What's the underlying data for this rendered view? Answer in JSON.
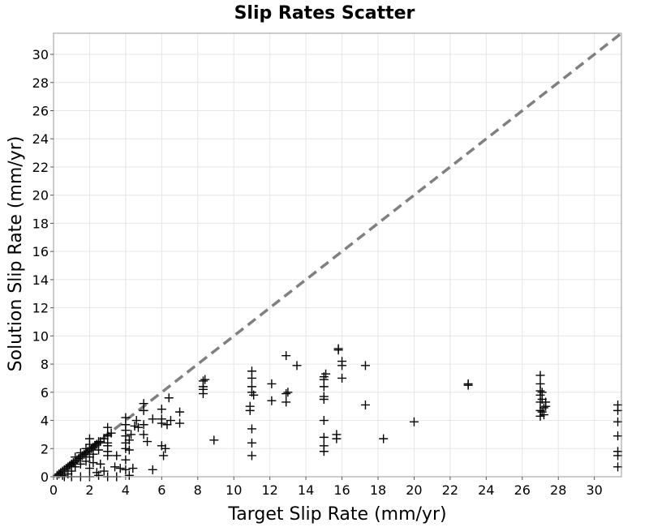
{
  "chart_data": {
    "type": "scatter",
    "title": "Slip Rates Scatter",
    "xlabel": "Target Slip Rate (mm/yr)",
    "ylabel": "Solution Slip Rate (mm/yr)",
    "xlim": [
      0,
      31.5
    ],
    "ylim": [
      0,
      31.5
    ],
    "xticks": [
      "0",
      "2",
      "4",
      "6",
      "8",
      "10",
      "12",
      "14",
      "16",
      "18",
      "20",
      "22",
      "24",
      "26",
      "28",
      "30"
    ],
    "yticks": [
      "0",
      "2",
      "4",
      "6",
      "8",
      "10",
      "12",
      "14",
      "16",
      "18",
      "20",
      "22",
      "24",
      "26",
      "28",
      "30"
    ],
    "grid": true,
    "legend": "none",
    "marker": "plus",
    "marker_color": "#000000",
    "reference_line": {
      "style": "dashed",
      "color": "#808080",
      "from": [
        0,
        0
      ],
      "to": [
        31.5,
        31.5
      ]
    },
    "series": [
      {
        "points": [
          [
            0.2,
            0.1
          ],
          [
            0.3,
            0.2
          ],
          [
            0.4,
            0.3
          ],
          [
            0.5,
            0.4
          ],
          [
            0.6,
            0.5
          ],
          [
            0.7,
            0.6
          ],
          [
            0.8,
            0.7
          ],
          [
            0.9,
            0.8
          ],
          [
            1.0,
            0.9
          ],
          [
            1.1,
            1.0
          ],
          [
            1.2,
            1.1
          ],
          [
            1.3,
            1.2
          ],
          [
            1.4,
            1.3
          ],
          [
            1.5,
            1.4
          ],
          [
            1.6,
            1.5
          ],
          [
            1.7,
            1.6
          ],
          [
            1.8,
            1.7
          ],
          [
            1.9,
            1.8
          ],
          [
            2.0,
            1.9
          ],
          [
            2.1,
            2.0
          ],
          [
            2.2,
            2.1
          ],
          [
            2.3,
            2.2
          ],
          [
            2.4,
            2.3
          ],
          [
            2.5,
            2.4
          ],
          [
            2.6,
            2.5
          ],
          [
            2.8,
            2.7
          ],
          [
            3.0,
            2.9
          ],
          [
            3.2,
            3.1
          ],
          [
            0.5,
            0.1
          ],
          [
            0.8,
            0.2
          ],
          [
            1.0,
            0.4
          ],
          [
            1.2,
            0.7
          ],
          [
            1.5,
            0.9
          ],
          [
            1.8,
            1.1
          ],
          [
            2.0,
            1.4
          ],
          [
            2.2,
            1.6
          ],
          [
            2.5,
            1.9
          ],
          [
            0.6,
            0.0
          ],
          [
            1.0,
            0.0
          ],
          [
            1.5,
            0.0
          ],
          [
            2.0,
            0.0
          ],
          [
            2.5,
            0.1
          ],
          [
            3.0,
            0.0
          ],
          [
            3.5,
            0.0
          ],
          [
            4.2,
            0.1
          ],
          [
            1.0,
            0.8
          ],
          [
            1.2,
            1.4
          ],
          [
            1.5,
            1.7
          ],
          [
            1.8,
            2.0
          ],
          [
            2.0,
            2.3
          ],
          [
            2.0,
            2.7
          ],
          [
            2.5,
            2.5
          ],
          [
            2.0,
            0.6
          ],
          [
            2.2,
            1.0
          ],
          [
            2.4,
            0.3
          ],
          [
            2.6,
            0.9
          ],
          [
            2.8,
            0.4
          ],
          [
            3.0,
            1.5
          ],
          [
            3.0,
            1.8
          ],
          [
            3.0,
            2.2
          ],
          [
            3.0,
            2.4
          ],
          [
            3.0,
            3.0
          ],
          [
            3.0,
            3.5
          ],
          [
            3.4,
            0.7
          ],
          [
            3.5,
            1.5
          ],
          [
            3.7,
            0.6
          ],
          [
            4.0,
            0.5
          ],
          [
            4.0,
            1.2
          ],
          [
            4.0,
            2.0
          ],
          [
            4.0,
            2.4
          ],
          [
            4.0,
            2.9
          ],
          [
            4.0,
            3.3
          ],
          [
            4.0,
            3.7
          ],
          [
            4.0,
            4.2
          ],
          [
            4.2,
            1.9
          ],
          [
            4.2,
            2.6
          ],
          [
            4.3,
            3.0
          ],
          [
            4.4,
            0.6
          ],
          [
            4.5,
            3.6
          ],
          [
            4.6,
            4.0
          ],
          [
            4.7,
            3.5
          ],
          [
            5.0,
            3.7
          ],
          [
            5.0,
            4.7
          ],
          [
            5.0,
            5.2
          ],
          [
            5.0,
            3.0
          ],
          [
            5.2,
            2.5
          ],
          [
            5.5,
            4.1
          ],
          [
            5.5,
            0.5
          ],
          [
            6.0,
            2.2
          ],
          [
            6.0,
            3.8
          ],
          [
            6.0,
            4.1
          ],
          [
            6.0,
            4.8
          ],
          [
            6.1,
            1.5
          ],
          [
            6.2,
            2.0
          ],
          [
            6.3,
            3.7
          ],
          [
            6.4,
            5.6
          ],
          [
            6.5,
            4.0
          ],
          [
            7.0,
            4.6
          ],
          [
            7.0,
            3.8
          ],
          [
            8.3,
            5.9
          ],
          [
            8.3,
            6.4
          ],
          [
            8.3,
            6.8
          ],
          [
            8.3,
            6.2
          ],
          [
            8.4,
            6.9
          ],
          [
            8.9,
            2.6
          ],
          [
            10.9,
            4.7
          ],
          [
            10.9,
            5.0
          ],
          [
            11.0,
            6.0
          ],
          [
            11.0,
            6.4
          ],
          [
            11.0,
            7.0
          ],
          [
            11.0,
            7.5
          ],
          [
            11.0,
            3.4
          ],
          [
            11.0,
            2.4
          ],
          [
            11.0,
            1.5
          ],
          [
            11.1,
            5.8
          ],
          [
            12.1,
            5.4
          ],
          [
            12.1,
            6.6
          ],
          [
            12.9,
            8.6
          ],
          [
            12.9,
            5.3
          ],
          [
            12.9,
            5.9
          ],
          [
            13.0,
            6.0
          ],
          [
            13.5,
            7.9
          ],
          [
            15.0,
            7.1
          ],
          [
            15.0,
            6.9
          ],
          [
            15.0,
            6.4
          ],
          [
            15.0,
            5.7
          ],
          [
            15.0,
            5.5
          ],
          [
            15.0,
            4.0
          ],
          [
            15.0,
            2.8
          ],
          [
            15.0,
            2.2
          ],
          [
            15.0,
            1.8
          ],
          [
            15.1,
            7.3
          ],
          [
            15.7,
            2.7
          ],
          [
            15.7,
            3.0
          ],
          [
            15.8,
            9.0
          ],
          [
            15.8,
            9.1
          ],
          [
            16.0,
            8.2
          ],
          [
            16.0,
            7.9
          ],
          [
            16.0,
            7.0
          ],
          [
            17.3,
            5.1
          ],
          [
            17.3,
            7.9
          ],
          [
            18.3,
            2.7
          ],
          [
            20.0,
            3.9
          ],
          [
            23.0,
            6.5
          ],
          [
            23.0,
            6.6
          ],
          [
            27.0,
            4.3
          ],
          [
            27.0,
            4.7
          ],
          [
            27.0,
            5.3
          ],
          [
            27.0,
            5.8
          ],
          [
            27.0,
            6.1
          ],
          [
            27.0,
            6.6
          ],
          [
            27.0,
            7.2
          ],
          [
            27.1,
            4.6
          ],
          [
            27.1,
            5.5
          ],
          [
            27.1,
            6.0
          ],
          [
            27.2,
            4.4
          ],
          [
            27.2,
            4.9
          ],
          [
            27.3,
            5.0
          ],
          [
            27.3,
            5.3
          ],
          [
            31.3,
            5.1
          ],
          [
            31.3,
            4.7
          ],
          [
            31.3,
            3.9
          ],
          [
            31.3,
            2.9
          ],
          [
            31.3,
            1.8
          ],
          [
            31.3,
            1.5
          ],
          [
            31.3,
            0.7
          ]
        ]
      }
    ]
  }
}
